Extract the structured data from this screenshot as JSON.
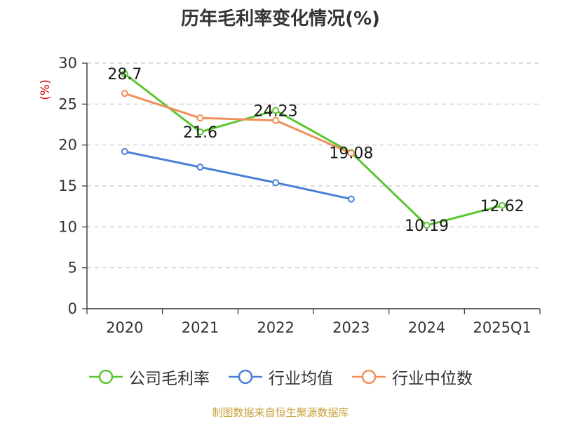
{
  "title": "历年毛利率变化情况(%)",
  "source": "制图数据来自恒生聚源数据库",
  "chart_data": {
    "type": "line",
    "title": "历年毛利率变化情况(%)",
    "ylabel": "(%)",
    "xlabel": "",
    "categories": [
      "2020",
      "2021",
      "2022",
      "2023",
      "2024",
      "2025Q1"
    ],
    "ylim": [
      0,
      30
    ],
    "yticks": [
      0,
      5,
      10,
      15,
      20,
      25,
      30
    ],
    "grid": true,
    "legend_position": "bottom",
    "series": [
      {
        "name": "公司毛利率",
        "color": "#5cc632",
        "values": [
          28.7,
          21.6,
          24.23,
          19.08,
          10.19,
          12.62
        ],
        "labels": [
          "28.7",
          "21.6",
          "24.23",
          "19.08",
          "10.19",
          "12.62"
        ]
      },
      {
        "name": "行业均值",
        "color": "#4a7fd6",
        "values": [
          19.2,
          17.3,
          15.4,
          13.4,
          null,
          null
        ]
      },
      {
        "name": "行业中位数",
        "color": "#f0905a",
        "values": [
          26.3,
          23.3,
          23.0,
          19.0,
          null,
          null
        ]
      }
    ]
  }
}
